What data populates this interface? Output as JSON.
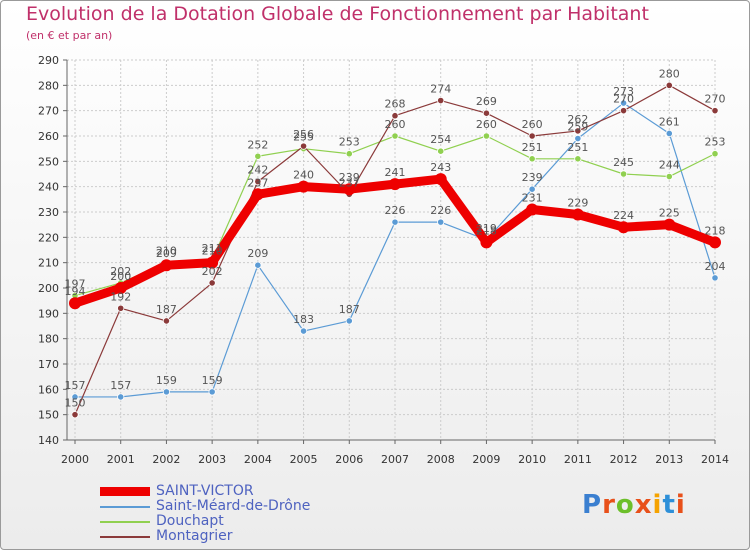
{
  "title": "Evolution de la Dotation Globale de Fonctionnement par Habitant",
  "subtitle": "(en € et par an)",
  "brand": {
    "letters": [
      "P",
      "r",
      "o",
      "x",
      "i",
      "t",
      "i"
    ],
    "letter_colors": [
      "#3a7fd0",
      "#e8501a",
      "#6cbf2a",
      "#e8501a",
      "#f5a300",
      "#2d8fd8",
      "#e8501a"
    ]
  },
  "colors": {
    "title": "#c0306a",
    "axis_text": "#333333",
    "grid": "#cccccc",
    "legend_text": "#4e62c0",
    "label_text": "#555555"
  },
  "chart_data": {
    "type": "line",
    "title": "Evolution de la Dotation Globale de Fonctionnement par Habitant",
    "subtitle": "(en € et par an)",
    "xlabel": "",
    "ylabel": "",
    "x": [
      2000,
      2001,
      2002,
      2003,
      2004,
      2005,
      2006,
      2007,
      2008,
      2009,
      2010,
      2011,
      2012,
      2013,
      2014
    ],
    "ylim": [
      140,
      290
    ],
    "yticks": [
      140,
      150,
      160,
      170,
      180,
      190,
      200,
      210,
      220,
      230,
      240,
      250,
      260,
      270,
      280,
      290
    ],
    "grid": true,
    "legend_position": "bottom-left",
    "series": [
      {
        "name": "SAINT-VICTOR",
        "color": "#ee0000",
        "values": [
          194,
          200,
          209,
          210,
          237,
          240,
          239,
          241,
          243,
          218,
          231,
          229,
          224,
          225,
          218
        ],
        "labels": [
          "194",
          "200",
          "209",
          "210",
          "237",
          "240",
          "239",
          "241",
          "243",
          "218",
          "231",
          "229",
          "224",
          "225",
          "218"
        ]
      },
      {
        "name": "Saint-Méard-de-Drône",
        "color": "#5b9bd5",
        "values": [
          157,
          157,
          159,
          159,
          209,
          183,
          187,
          226,
          226,
          219,
          239,
          259,
          273,
          261,
          204
        ],
        "labels": [
          "157",
          "157",
          "159",
          "159",
          "209",
          "183",
          "187",
          "226",
          "226",
          "219",
          "239",
          "259",
          "273",
          "261",
          "204"
        ]
      },
      {
        "name": "Douchapt",
        "color": "#90d050",
        "values": [
          197,
          202,
          210,
          211,
          252,
          255,
          253,
          260,
          254,
          260,
          251,
          251,
          245,
          244,
          253
        ],
        "labels": [
          "197",
          "202",
          "210",
          "211",
          "252",
          "255",
          "253",
          "260",
          "254",
          "260",
          "251",
          "251",
          "245",
          "244",
          "253"
        ]
      },
      {
        "name": "Montagrier",
        "color": "#8b3a3a",
        "values": [
          150,
          192,
          187,
          202,
          242,
          256,
          237,
          268,
          274,
          269,
          260,
          262,
          270,
          280,
          270
        ],
        "labels": [
          "150",
          "192",
          "187",
          "202",
          "242",
          "256",
          "237",
          "268",
          "274",
          "269",
          "260",
          "262",
          "270",
          "280",
          "270"
        ]
      }
    ]
  }
}
